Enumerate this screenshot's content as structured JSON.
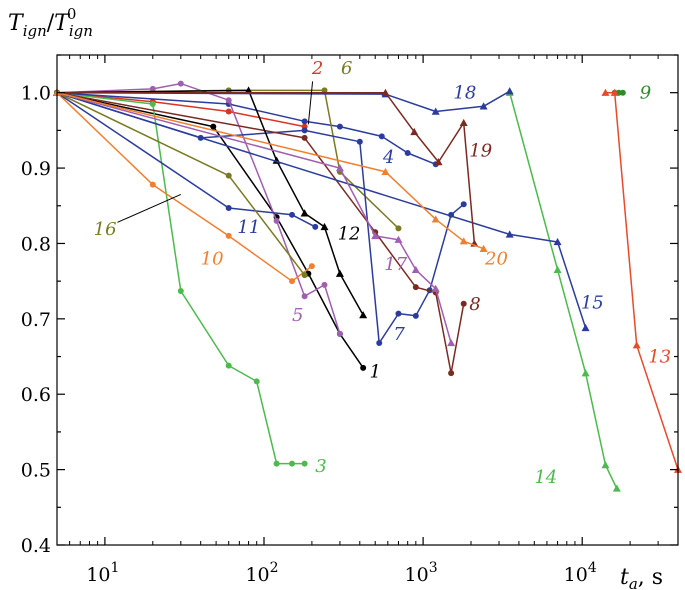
{
  "chart_data": {
    "type": "line",
    "title": "",
    "ylabel": "T_ign / T_ign^0",
    "ylabel_parts": {
      "base": "T",
      "num_sub": "ign",
      "den_sub": "ign",
      "den_sup": "0"
    },
    "xlabel": "t_a, s",
    "xlabel_parts": {
      "var": "t",
      "sub": "a",
      "unit": ", s"
    },
    "xscale": "log",
    "xlim": [
      5,
      40000
    ],
    "ylim": [
      0.4,
      1.05
    ],
    "x_ticks": [
      {
        "value": 10,
        "label": "10",
        "sup": "1"
      },
      {
        "value": 100,
        "label": "10",
        "sup": "2"
      },
      {
        "value": 1000,
        "label": "10",
        "sup": "3"
      },
      {
        "value": 10000,
        "label": "10",
        "sup": "4"
      }
    ],
    "y_ticks": [
      "0.4",
      "0.5",
      "0.6",
      "0.7",
      "0.8",
      "0.9",
      "1.0"
    ],
    "series": [
      {
        "name": "1",
        "color": "#000000",
        "marker": "circle",
        "label_at": [
          460,
          0.63
        ],
        "x": [
          5,
          48,
          120,
          190,
          300,
          420
        ],
        "y": [
          1.0,
          0.955,
          0.835,
          0.76,
          0.68,
          0.635
        ]
      },
      {
        "name": "2",
        "color": "#dd3322",
        "marker": "circle",
        "label_at": [
          200,
          1.033
        ],
        "x": [
          5,
          20,
          60,
          180
        ],
        "y": [
          1.0,
          0.988,
          0.975,
          0.955
        ]
      },
      {
        "name": "3",
        "color": "#4cba4c",
        "marker": "circle",
        "label_at": [
          210,
          0.505
        ],
        "x": [
          5,
          20,
          30,
          60,
          90,
          120,
          150,
          180
        ],
        "y": [
          1.0,
          0.985,
          0.737,
          0.638,
          0.617,
          0.508,
          0.508,
          0.508
        ]
      },
      {
        "name": "4",
        "color": "#2c3c9c",
        "marker": "circle",
        "label_at": [
          560,
          0.915
        ],
        "x": [
          5,
          60,
          180,
          300,
          550,
          800,
          1200
        ],
        "y": [
          1.0,
          0.985,
          0.962,
          0.955,
          0.942,
          0.92,
          0.905
        ]
      },
      {
        "name": "5",
        "color": "#a060b0",
        "marker": "circle",
        "label_at": [
          150,
          0.705
        ],
        "x": [
          5,
          20,
          30,
          60,
          120,
          180,
          240,
          300
        ],
        "y": [
          1.0,
          1.005,
          1.012,
          0.99,
          0.83,
          0.73,
          0.745,
          0.68
        ]
      },
      {
        "name": "6",
        "color": "#7a7a22",
        "marker": "circle",
        "label_at": [
          305,
          1.033
        ],
        "x": [
          5,
          60,
          240,
          300,
          700
        ],
        "y": [
          1.0,
          1.003,
          1.003,
          0.895,
          0.82
        ]
      },
      {
        "name": "7",
        "color": "#2c3c9c",
        "marker": "circle",
        "label_at": [
          650,
          0.68
        ],
        "x": [
          5,
          40,
          180,
          400,
          530,
          700,
          900,
          1100,
          1500,
          1800
        ],
        "y": [
          1.0,
          0.94,
          0.95,
          0.935,
          0.668,
          0.707,
          0.704,
          0.738,
          0.838,
          0.852
        ]
      },
      {
        "name": "8",
        "color": "#7a2a22",
        "marker": "circle",
        "label_at": [
          1950,
          0.72
        ],
        "x": [
          5,
          180,
          500,
          900,
          1200,
          1500,
          1800
        ],
        "y": [
          1.0,
          0.94,
          0.815,
          0.742,
          0.735,
          0.628,
          0.72
        ]
      },
      {
        "name": "9",
        "color": "#2e8b2e",
        "marker": "circle",
        "label_at": [
          23000,
          1.0
        ],
        "x": [
          16000,
          17000,
          18000
        ],
        "y": [
          1.0,
          1.0,
          1.0
        ]
      },
      {
        "name": "10",
        "color": "#f08030",
        "marker": "circle",
        "label_at": [
          40,
          0.78
        ],
        "x": [
          5,
          20,
          60,
          150,
          200
        ],
        "y": [
          1.0,
          0.878,
          0.81,
          0.75,
          0.77
        ]
      },
      {
        "name": "11",
        "color": "#2c3c9c",
        "marker": "circle",
        "label_at": [
          68,
          0.822
        ],
        "x": [
          5,
          60,
          150,
          210
        ],
        "y": [
          1.0,
          0.847,
          0.838,
          0.822
        ]
      },
      {
        "name": "12",
        "color": "#000000",
        "marker": "triangle",
        "label_at": [
          290,
          0.813
        ],
        "x": [
          5,
          80,
          120,
          180,
          240,
          300,
          420
        ],
        "y": [
          1.0,
          1.003,
          0.91,
          0.84,
          0.822,
          0.76,
          0.705
        ]
      },
      {
        "name": "13",
        "color": "#e84a2a",
        "marker": "triangle",
        "label_at": [
          26000,
          0.65
        ],
        "x": [
          14000,
          16000,
          22000,
          40000
        ],
        "y": [
          1.0,
          1.0,
          0.665,
          0.5
        ]
      },
      {
        "name": "14",
        "color": "#4cba4c",
        "marker": "triangle",
        "label_at": [
          5000,
          0.49
        ],
        "x": [
          3500,
          7000,
          10500,
          14000,
          16500
        ],
        "y": [
          1.0,
          0.765,
          0.628,
          0.506,
          0.475
        ]
      },
      {
        "name": "15",
        "color": "#2c3c9c",
        "marker": "triangle",
        "label_at": [
          9800,
          0.722
        ],
        "x": [
          5,
          3500,
          7000,
          10500
        ],
        "y": [
          1.0,
          0.812,
          0.802,
          0.688
        ]
      },
      {
        "name": "16",
        "color": "#7a7a22",
        "marker": "circle",
        "label_at": [
          8.5,
          0.819
        ],
        "x": [
          5,
          60,
          180
        ],
        "y": [
          1.0,
          0.89,
          0.758
        ]
      },
      {
        "name": "17",
        "color": "#a060b0",
        "marker": "triangle",
        "label_at": [
          570,
          0.773
        ],
        "x": [
          5,
          300,
          500,
          700,
          900,
          1200,
          1500
        ],
        "y": [
          1.0,
          0.9,
          0.81,
          0.805,
          0.765,
          0.74,
          0.668
        ]
      },
      {
        "name": "18",
        "color": "#2c3c9c",
        "marker": "triangle",
        "label_at": [
          1550,
          1.0
        ],
        "x": [
          5,
          580,
          1200,
          2400,
          3500
        ],
        "y": [
          1.0,
          0.998,
          0.975,
          0.982,
          1.002
        ]
      },
      {
        "name": "19",
        "color": "#7a2a22",
        "marker": "triangle",
        "label_at": [
          1950,
          0.923
        ],
        "x": [
          5,
          580,
          880,
          1250,
          1800,
          2100
        ],
        "y": [
          1.0,
          1.0,
          0.948,
          0.908,
          0.96,
          0.8
        ]
      },
      {
        "name": "20",
        "color": "#f08030",
        "marker": "triangle",
        "label_at": [
          2450,
          0.78
        ],
        "x": [
          5,
          580,
          1200,
          1800,
          2400
        ],
        "y": [
          1.0,
          0.895,
          0.832,
          0.803,
          0.793
        ]
      }
    ]
  }
}
